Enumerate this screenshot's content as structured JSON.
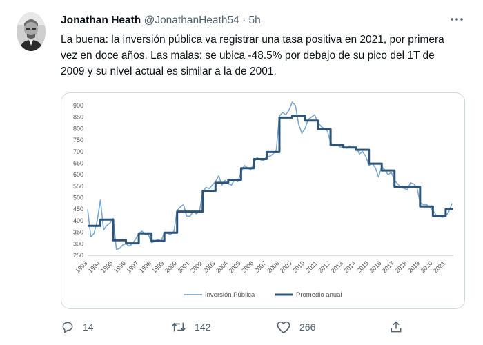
{
  "tweet": {
    "author_name": "Jonathan Heath",
    "author_handle": "@JonathanHeath54",
    "separator": "·",
    "time": "5h",
    "text": "La buena: la inversión pública va registrar una tasa positiva en 2021, por primera vez en doce años. Las malas: se ubica -48.5% por debajo de su pico del 1T de 2009 y su nivel actual es similar a la de 2001."
  },
  "actions": {
    "reply_count": "14",
    "retweet_count": "142",
    "like_count": "266"
  },
  "icons": [
    "avatar-photo",
    "more-icon",
    "reply-icon",
    "retweet-icon",
    "like-icon",
    "share-icon"
  ],
  "colors": {
    "series_thin": "#7ba7cf",
    "series_thick": "#2c5478",
    "text_secondary": "#536471"
  },
  "chart_data": {
    "type": "line",
    "grid": false,
    "legend_position": "bottom",
    "ylim": [
      250,
      900
    ],
    "yticks": [
      250,
      300,
      350,
      400,
      450,
      500,
      550,
      600,
      650,
      700,
      750,
      800,
      850,
      900
    ],
    "xticks": [
      "1993",
      "1994",
      "1995",
      "1996",
      "1997",
      "1998",
      "1999",
      "2000",
      "2001",
      "2002",
      "2003",
      "2004",
      "2005",
      "2006",
      "2007",
      "2008",
      "2009",
      "2010",
      "2011",
      "2012",
      "2013",
      "2014",
      "2015",
      "2016",
      "2017",
      "2018",
      "2019",
      "2020",
      "2021"
    ],
    "series": [
      {
        "name": "Inversión Pública",
        "x": [
          1993.0,
          1993.25,
          1993.5,
          1993.75,
          1994.0,
          1994.25,
          1994.5,
          1994.75,
          1995.0,
          1995.25,
          1995.5,
          1995.75,
          1996.0,
          1996.25,
          1996.5,
          1996.75,
          1997.0,
          1997.25,
          1997.5,
          1997.75,
          1998.0,
          1998.25,
          1998.5,
          1998.75,
          1999.0,
          1999.25,
          1999.5,
          1999.75,
          2000.0,
          2000.25,
          2000.5,
          2000.75,
          2001.0,
          2001.25,
          2001.5,
          2001.75,
          2002.0,
          2002.25,
          2002.5,
          2002.75,
          2003.0,
          2003.25,
          2003.5,
          2003.75,
          2004.0,
          2004.25,
          2004.5,
          2004.75,
          2005.0,
          2005.25,
          2005.5,
          2005.75,
          2006.0,
          2006.25,
          2006.5,
          2006.75,
          2007.0,
          2007.25,
          2007.5,
          2007.75,
          2008.0,
          2008.25,
          2008.5,
          2008.75,
          2009.0,
          2009.25,
          2009.5,
          2009.75,
          2010.0,
          2010.25,
          2010.5,
          2010.75,
          2011.0,
          2011.25,
          2011.5,
          2011.75,
          2012.0,
          2012.25,
          2012.5,
          2012.75,
          2013.0,
          2013.25,
          2013.5,
          2013.75,
          2014.0,
          2014.25,
          2014.5,
          2014.75,
          2015.0,
          2015.25,
          2015.5,
          2015.75,
          2016.0,
          2016.25,
          2016.5,
          2016.75,
          2017.0,
          2017.25,
          2017.5,
          2017.75,
          2018.0,
          2018.25,
          2018.5,
          2018.75,
          2019.0,
          2019.25,
          2019.5,
          2019.75,
          2020.0,
          2020.25,
          2020.5,
          2020.75,
          2021.0,
          2021.25,
          2021.5
        ],
        "values": [
          450,
          330,
          345,
          400,
          490,
          360,
          380,
          390,
          410,
          275,
          280,
          295,
          300,
          290,
          300,
          320,
          345,
          355,
          340,
          340,
          305,
          310,
          320,
          310,
          350,
          345,
          340,
          355,
          445,
          460,
          470,
          420,
          420,
          440,
          430,
          440,
          525,
          545,
          540,
          555,
          570,
          595,
          555,
          575,
          560,
          555,
          580,
          570,
          610,
          640,
          630,
          620,
          650,
          675,
          665,
          660,
          680,
          680,
          690,
          705,
          855,
          870,
          860,
          880,
          915,
          900,
          820,
          780,
          800,
          840,
          850,
          860,
          830,
          810,
          800,
          790,
          740,
          725,
          730,
          720,
          720,
          715,
          725,
          720,
          720,
          690,
          700,
          680,
          640,
          650,
          630,
          590,
          635,
          620,
          600,
          610,
          575,
          560,
          545,
          540,
          535,
          565,
          560,
          545,
          480,
          470,
          470,
          460,
          445,
          425,
          420,
          415,
          420,
          440,
          475
        ]
      },
      {
        "name": "Promedio anual",
        "x": [
          1993,
          1994,
          1995,
          1996,
          1997,
          1998,
          1999,
          2000,
          2001,
          2002,
          2003,
          2004,
          2005,
          2006,
          2007,
          2008,
          2009,
          2010,
          2011,
          2012,
          2013,
          2014,
          2015,
          2016,
          2017,
          2018,
          2019,
          2020,
          2021
        ],
        "values": [
          378,
          405,
          315,
          302,
          345,
          312,
          348,
          440,
          440,
          530,
          565,
          578,
          628,
          668,
          698,
          848,
          855,
          835,
          798,
          728,
          718,
          708,
          648,
          618,
          548,
          548,
          462,
          422,
          450
        ]
      }
    ]
  }
}
